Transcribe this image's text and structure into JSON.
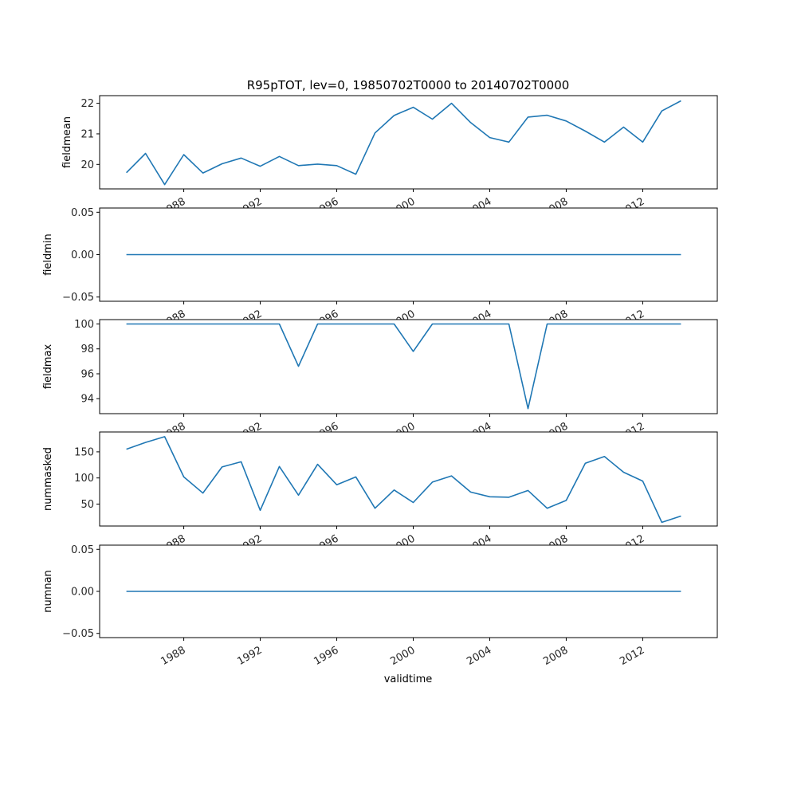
{
  "chart_data": {
    "type": "line",
    "title": "R95pTOT, lev=0, 19850702T0000 to 20140702T0000",
    "xlabel": "validtime",
    "x": [
      1985,
      1986,
      1987,
      1988,
      1989,
      1990,
      1991,
      1992,
      1993,
      1994,
      1995,
      1996,
      1997,
      1998,
      1999,
      2000,
      2001,
      2002,
      2003,
      2004,
      2005,
      2006,
      2007,
      2008,
      2009,
      2010,
      2011,
      2012,
      2013,
      2014
    ],
    "x_ticks": [
      "1988",
      "1992",
      "1996",
      "2000",
      "2004",
      "2008",
      "2012"
    ],
    "panels": [
      {
        "ylabel": "fieldmean",
        "ylim": [
          19.2,
          22.25
        ],
        "yticks": [
          "20",
          "21",
          "22"
        ],
        "values": [
          19.73,
          20.36,
          19.34,
          20.32,
          19.72,
          20.02,
          20.21,
          19.94,
          20.26,
          19.96,
          20.01,
          19.96,
          19.68,
          21.03,
          21.6,
          21.87,
          21.48,
          22.0,
          21.37,
          20.88,
          20.73,
          21.55,
          21.61,
          21.42,
          21.09,
          20.73,
          21.22,
          20.73,
          21.75,
          22.08
        ]
      },
      {
        "ylabel": "fieldmin",
        "ylim": [
          -0.055,
          0.055
        ],
        "yticks": [
          "0.05",
          "0.00",
          "−0.05"
        ],
        "values": [
          0,
          0,
          0,
          0,
          0,
          0,
          0,
          0,
          0,
          0,
          0,
          0,
          0,
          0,
          0,
          0,
          0,
          0,
          0,
          0,
          0,
          0,
          0,
          0,
          0,
          0,
          0,
          0,
          0,
          0
        ]
      },
      {
        "ylabel": "fieldmax",
        "ylim": [
          92.8,
          100.35
        ],
        "yticks": [
          "100",
          "98",
          "96",
          "94"
        ],
        "values": [
          100,
          100,
          100,
          100,
          100,
          100,
          100,
          100,
          100,
          96.6,
          100,
          100,
          100,
          100,
          100,
          97.8,
          100,
          100,
          100,
          100,
          100,
          93.2,
          100,
          100,
          100,
          100,
          100,
          100,
          100,
          100
        ]
      },
      {
        "ylabel": "nummasked",
        "ylim": [
          8,
          188
        ],
        "yticks": [
          "150",
          "100",
          "50"
        ],
        "values": [
          155,
          168,
          179,
          102,
          71,
          121,
          131,
          38,
          122,
          67,
          126,
          87,
          102,
          42,
          77,
          53,
          92,
          104,
          73,
          64,
          63,
          76,
          42,
          57,
          128,
          141,
          111,
          94,
          15,
          27
        ]
      },
      {
        "ylabel": "numnan",
        "ylim": [
          -0.055,
          0.055
        ],
        "yticks": [
          "0.05",
          "0.00",
          "−0.05"
        ],
        "values": [
          0,
          0,
          0,
          0,
          0,
          0,
          0,
          0,
          0,
          0,
          0,
          0,
          0,
          0,
          0,
          0,
          0,
          0,
          0,
          0,
          0,
          0,
          0,
          0,
          0,
          0,
          0,
          0,
          0,
          0
        ]
      }
    ],
    "series_color": "#1f77b4"
  }
}
